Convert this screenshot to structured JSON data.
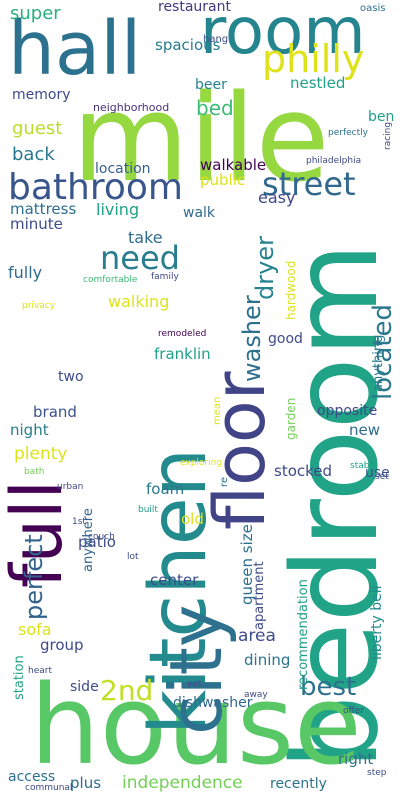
{
  "words": [
    {
      "text": "mile",
      "color": "#95d840"
    },
    {
      "text": "bedroom",
      "color": "#20a386"
    },
    {
      "text": "house",
      "color": "#58c765"
    },
    {
      "text": "kitchen",
      "color": "#238a8d"
    },
    {
      "text": "city",
      "color": "#2d718e"
    },
    {
      "text": "floor",
      "color": "#414487"
    },
    {
      "text": "full",
      "color": "#440154"
    },
    {
      "text": "hall",
      "color": "#2c728e"
    },
    {
      "text": "room",
      "color": "#25858e"
    },
    {
      "text": "bathroom",
      "color": "#39568c"
    },
    {
      "text": "philly",
      "color": "#dde318"
    },
    {
      "text": "street",
      "color": "#31688e"
    },
    {
      "text": "need",
      "color": "#287d8e"
    },
    {
      "text": "located",
      "color": "#2a788e"
    },
    {
      "text": "washer",
      "color": "#2d708e"
    },
    {
      "text": "dryer",
      "color": "#26828e"
    },
    {
      "text": "perfect",
      "color": "#33638d"
    },
    {
      "text": "2nd",
      "color": "#c0df25"
    },
    {
      "text": "best",
      "color": "#2d708e"
    },
    {
      "text": "restaurant",
      "color": "#453781"
    },
    {
      "text": "super",
      "color": "#29af7f"
    },
    {
      "text": "spacious",
      "color": "#287c8e"
    },
    {
      "text": "nestled",
      "color": "#1fa187"
    },
    {
      "text": "beer",
      "color": "#25838e"
    },
    {
      "text": "bed",
      "color": "#3bbb75"
    },
    {
      "text": "ben",
      "color": "#1f9e89"
    },
    {
      "text": "memory",
      "color": "#3e4a89"
    },
    {
      "text": "neighborhood",
      "color": "#46337e"
    },
    {
      "text": "guest",
      "color": "#b8de29"
    },
    {
      "text": "back",
      "color": "#2a788e"
    },
    {
      "text": "location",
      "color": "#355f8d"
    },
    {
      "text": "walkable",
      "color": "#440154"
    },
    {
      "text": "public",
      "color": "#dde318"
    },
    {
      "text": "easy",
      "color": "#3f4889"
    },
    {
      "text": "mattress",
      "color": "#2e6e8e"
    },
    {
      "text": "minute",
      "color": "#3e4c8a"
    },
    {
      "text": "living",
      "color": "#1fa187"
    },
    {
      "text": "walk",
      "color": "#2f6c8e"
    },
    {
      "text": "take",
      "color": "#2f6c8e"
    },
    {
      "text": "fully",
      "color": "#2f6c8e"
    },
    {
      "text": "walking",
      "color": "#dde318"
    },
    {
      "text": "hardwood",
      "color": "#dde318"
    },
    {
      "text": "anything",
      "color": "#287d8e"
    },
    {
      "text": "good",
      "color": "#3e4c8a"
    },
    {
      "text": "franklin",
      "color": "#1fa187"
    },
    {
      "text": "two",
      "color": "#3d4d8a"
    },
    {
      "text": "garden",
      "color": "#73d056"
    },
    {
      "text": "opposite",
      "color": "#3e4a89"
    },
    {
      "text": "brand",
      "color": "#3b528b"
    },
    {
      "text": "night",
      "color": "#287d8e"
    },
    {
      "text": "new",
      "color": "#2f6c8e"
    },
    {
      "text": "plenty",
      "color": "#dde318"
    },
    {
      "text": "use",
      "color": "#3b528b"
    },
    {
      "text": "stocked",
      "color": "#3e4a89"
    },
    {
      "text": "foam",
      "color": "#2a788e"
    },
    {
      "text": "old",
      "color": "#dde318"
    },
    {
      "text": "patio",
      "color": "#3e4c8a"
    },
    {
      "text": "center",
      "color": "#3e4c8a"
    },
    {
      "text": "queen size",
      "color": "#2d708e"
    },
    {
      "text": "apartment",
      "color": "#3e4c8a"
    },
    {
      "text": "recommendation",
      "color": "#1fa187"
    },
    {
      "text": "liberty bell",
      "color": "#238a8d"
    },
    {
      "text": "anywhere",
      "color": "#33638d"
    },
    {
      "text": "sofa",
      "color": "#dde318"
    },
    {
      "text": "group",
      "color": "#3e4a89"
    },
    {
      "text": "area",
      "color": "#3e4c8a"
    },
    {
      "text": "station",
      "color": "#22a785"
    },
    {
      "text": "dining",
      "color": "#2c728e"
    },
    {
      "text": "side",
      "color": "#3e4a89"
    },
    {
      "text": "dishwasher",
      "color": "#31688e"
    },
    {
      "text": "right",
      "color": "#2d708e"
    },
    {
      "text": "access",
      "color": "#2d708e"
    },
    {
      "text": "plus",
      "color": "#2f6c8e"
    },
    {
      "text": "independence",
      "color": "#73d056"
    },
    {
      "text": "recently",
      "color": "#2c728e"
    },
    {
      "text": "oasis",
      "color": "#2d708e"
    },
    {
      "text": "hang",
      "color": "#3e4c8a"
    },
    {
      "text": "perfectly",
      "color": "#2c728e"
    },
    {
      "text": "racing",
      "color": "#3e4a89"
    },
    {
      "text": "philadelphia",
      "color": "#3e4a89"
    },
    {
      "text": "comfortable",
      "color": "#3bbb75"
    },
    {
      "text": "family",
      "color": "#3e4a89"
    },
    {
      "text": "privacy",
      "color": "#dde318"
    },
    {
      "text": "remodeled",
      "color": "#440154"
    },
    {
      "text": "mean",
      "color": "#dde318"
    },
    {
      "text": "re",
      "color": "#2c728e"
    },
    {
      "text": "bath",
      "color": "#73d056"
    },
    {
      "text": "exploring",
      "color": "#dde318"
    },
    {
      "text": "stable",
      "color": "#1fa187"
    },
    {
      "text": "set",
      "color": "#3e4c8a"
    },
    {
      "text": "urban",
      "color": "#3e4a89"
    },
    {
      "text": "1st",
      "color": "#3e4a89"
    },
    {
      "text": "couch",
      "color": "#3e4a89"
    },
    {
      "text": "built",
      "color": "#1fa187"
    },
    {
      "text": "lot",
      "color": "#3e4a89"
    },
    {
      "text": "heart",
      "color": "#3e4a89"
    },
    {
      "text": "away",
      "color": "#3e4a89"
    },
    {
      "text": "yet",
      "color": "#3e4c8a"
    },
    {
      "text": "offer",
      "color": "#3e4a89"
    },
    {
      "text": "step",
      "color": "#3e4a89"
    },
    {
      "text": "communal",
      "color": "#3e4a89"
    }
  ]
}
